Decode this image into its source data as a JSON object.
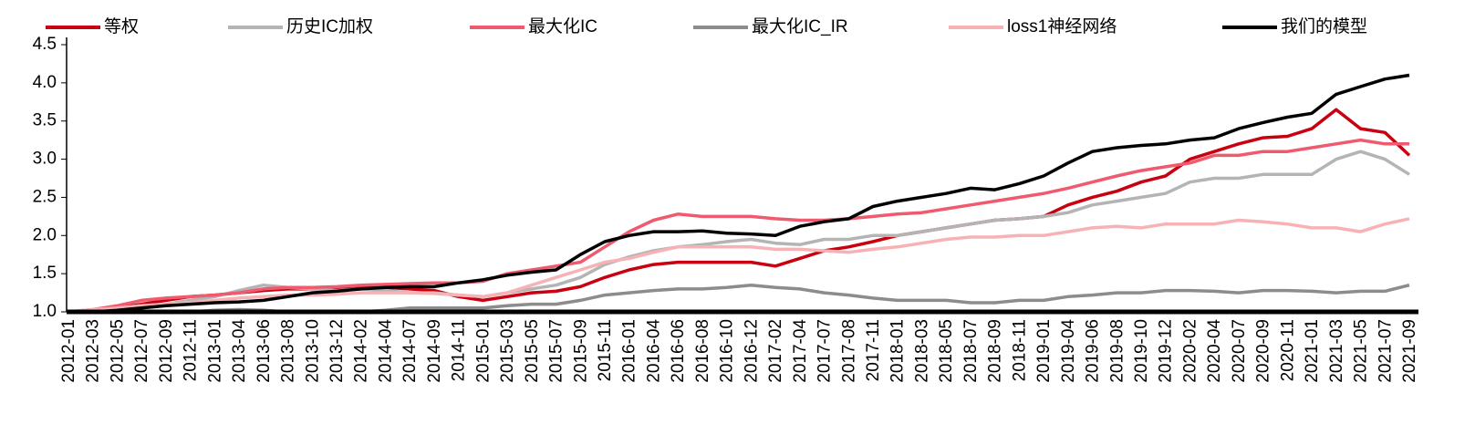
{
  "chart_data": {
    "type": "line",
    "categories": [
      "2012-01",
      "2012-03",
      "2012-05",
      "2012-07",
      "2012-09",
      "2012-11",
      "2013-01",
      "2013-04",
      "2013-06",
      "2013-08",
      "2013-10",
      "2013-12",
      "2014-02",
      "2014-04",
      "2014-07",
      "2014-09",
      "2014-11",
      "2015-01",
      "2015-03",
      "2015-05",
      "2015-07",
      "2015-09",
      "2015-11",
      "2016-01",
      "2016-04",
      "2016-06",
      "2016-08",
      "2016-10",
      "2016-12",
      "2017-02",
      "2017-04",
      "2017-07",
      "2017-08",
      "2017-11",
      "2018-01",
      "2018-03",
      "2018-05",
      "2018-07",
      "2018-09",
      "2018-11",
      "2019-01",
      "2019-04",
      "2019-06",
      "2019-08",
      "2019-10",
      "2019-12",
      "2020-02",
      "2020-04",
      "2020-07",
      "2020-09",
      "2020-11",
      "2021-01",
      "2021-03",
      "2021-05",
      "2021-07",
      "2021-09"
    ],
    "series": [
      {
        "name": "等权",
        "color": "#c8000f",
        "values": [
          1.0,
          1.02,
          1.05,
          1.1,
          1.15,
          1.2,
          1.22,
          1.25,
          1.28,
          1.3,
          1.3,
          1.3,
          1.32,
          1.32,
          1.3,
          1.28,
          1.2,
          1.15,
          1.2,
          1.25,
          1.27,
          1.33,
          1.45,
          1.55,
          1.62,
          1.65,
          1.65,
          1.65,
          1.65,
          1.6,
          1.7,
          1.8,
          1.85,
          1.92,
          2.0,
          2.05,
          2.1,
          2.15,
          2.2,
          2.22,
          2.25,
          2.4,
          2.5,
          2.58,
          2.7,
          2.78,
          3.0,
          3.1,
          3.2,
          3.28,
          3.3,
          3.4,
          3.65,
          3.4,
          3.35,
          3.05
        ]
      },
      {
        "name": "历史IC加权",
        "color": "#b4b4b4",
        "values": [
          1.0,
          1.02,
          1.05,
          1.08,
          1.1,
          1.15,
          1.2,
          1.28,
          1.35,
          1.32,
          1.3,
          1.28,
          1.3,
          1.28,
          1.25,
          1.25,
          1.22,
          1.2,
          1.25,
          1.3,
          1.35,
          1.45,
          1.62,
          1.72,
          1.8,
          1.85,
          1.88,
          1.92,
          1.95,
          1.9,
          1.88,
          1.95,
          1.95,
          2.0,
          2.0,
          2.05,
          2.1,
          2.15,
          2.2,
          2.22,
          2.25,
          2.3,
          2.4,
          2.45,
          2.5,
          2.55,
          2.7,
          2.75,
          2.75,
          2.8,
          2.8,
          2.8,
          3.0,
          3.1,
          3.0,
          2.8
        ]
      },
      {
        "name": "最大化IC",
        "color": "#f05a6e",
        "values": [
          1.0,
          1.03,
          1.08,
          1.15,
          1.18,
          1.2,
          1.22,
          1.25,
          1.3,
          1.32,
          1.32,
          1.33,
          1.35,
          1.36,
          1.37,
          1.38,
          1.38,
          1.4,
          1.5,
          1.55,
          1.6,
          1.65,
          1.85,
          2.05,
          2.2,
          2.28,
          2.25,
          2.25,
          2.25,
          2.22,
          2.2,
          2.2,
          2.22,
          2.25,
          2.28,
          2.3,
          2.35,
          2.4,
          2.45,
          2.5,
          2.55,
          2.62,
          2.7,
          2.78,
          2.85,
          2.9,
          2.95,
          3.05,
          3.05,
          3.1,
          3.1,
          3.15,
          3.2,
          3.25,
          3.2,
          3.2
        ]
      },
      {
        "name": "最大化IC_IR",
        "color": "#8c8c8c",
        "values": [
          1.0,
          1.0,
          1.0,
          1.0,
          1.0,
          1.0,
          1.02,
          1.03,
          1.02,
          1.0,
          1.0,
          1.0,
          1.0,
          1.02,
          1.05,
          1.05,
          1.05,
          1.05,
          1.08,
          1.1,
          1.1,
          1.15,
          1.22,
          1.25,
          1.28,
          1.3,
          1.3,
          1.32,
          1.35,
          1.32,
          1.3,
          1.25,
          1.22,
          1.18,
          1.15,
          1.15,
          1.15,
          1.12,
          1.12,
          1.15,
          1.15,
          1.2,
          1.22,
          1.25,
          1.25,
          1.28,
          1.28,
          1.27,
          1.25,
          1.28,
          1.28,
          1.27,
          1.25,
          1.27,
          1.27,
          1.35
        ]
      },
      {
        "name": "loss1神经网络",
        "color": "#f7b2b6",
        "values": [
          1.0,
          1.03,
          1.05,
          1.08,
          1.1,
          1.12,
          1.15,
          1.18,
          1.2,
          1.22,
          1.22,
          1.23,
          1.25,
          1.25,
          1.25,
          1.24,
          1.22,
          1.2,
          1.25,
          1.35,
          1.45,
          1.55,
          1.65,
          1.7,
          1.78,
          1.85,
          1.85,
          1.85,
          1.85,
          1.82,
          1.82,
          1.8,
          1.78,
          1.82,
          1.85,
          1.9,
          1.95,
          1.98,
          1.98,
          2.0,
          2.0,
          2.05,
          2.1,
          2.12,
          2.1,
          2.15,
          2.15,
          2.15,
          2.2,
          2.18,
          2.15,
          2.1,
          2.1,
          2.05,
          2.15,
          2.22
        ]
      },
      {
        "name": "我们的模型",
        "color": "#000000",
        "values": [
          1.0,
          1.0,
          1.02,
          1.05,
          1.08,
          1.1,
          1.12,
          1.13,
          1.15,
          1.2,
          1.25,
          1.27,
          1.3,
          1.32,
          1.33,
          1.33,
          1.38,
          1.42,
          1.48,
          1.52,
          1.55,
          1.75,
          1.92,
          2.0,
          2.05,
          2.05,
          2.06,
          2.03,
          2.02,
          2.0,
          2.12,
          2.18,
          2.22,
          2.38,
          2.45,
          2.5,
          2.55,
          2.62,
          2.6,
          2.68,
          2.78,
          2.95,
          3.1,
          3.15,
          3.18,
          3.2,
          3.25,
          3.28,
          3.4,
          3.48,
          3.55,
          3.6,
          3.85,
          3.95,
          4.05,
          4.1
        ]
      }
    ],
    "ylim": [
      1.0,
      4.5
    ],
    "yticks": [
      {
        "value": 1.0,
        "label": "1.0"
      },
      1.5,
      {
        "value": 2.0,
        "label": "2.0"
      },
      2.5,
      {
        "value": 3.0,
        "label": "3.0"
      },
      3.5,
      {
        "value": 4.0,
        "label": "4.0"
      },
      4.5
    ],
    "legend": "top"
  }
}
